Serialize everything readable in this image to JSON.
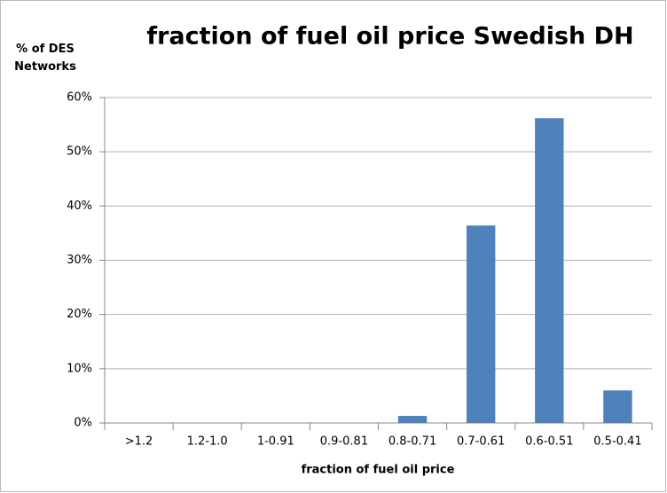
{
  "chart_data": {
    "type": "bar",
    "title": "fraction of fuel oil price Swedish DH",
    "ylabel": "% of DES Networks",
    "xlabel": "fraction of fuel oil price",
    "categories": [
      ">1.2",
      "1.2-1.0",
      "1-0.91",
      "0.9-0.81",
      "0.8-0.71",
      "0.7-0.61",
      "0.6-0.51",
      "0.5-0.41"
    ],
    "values": [
      0,
      0,
      0,
      0,
      1.3,
      36.4,
      56.2,
      6.0
    ],
    "color": "#4f81bd",
    "ylim": [
      0,
      60
    ],
    "yticks": [
      {
        "value": 0,
        "label": "0%"
      },
      {
        "value": 10,
        "label": "10%"
      },
      {
        "value": 20,
        "label": "20%"
      },
      {
        "value": 30,
        "label": "30%"
      },
      {
        "value": 40,
        "label": "40%"
      },
      {
        "value": 50,
        "label": "50%"
      },
      {
        "value": 60,
        "label": "60%"
      }
    ],
    "grid": true
  }
}
